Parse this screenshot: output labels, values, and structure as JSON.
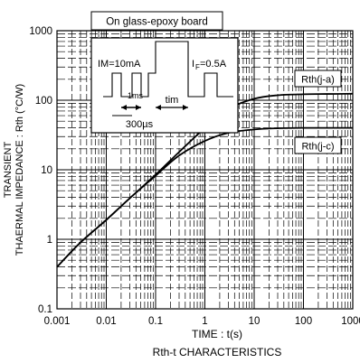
{
  "chart_data": {
    "type": "line",
    "title": "Rth-t CHARACTERISTICS",
    "xlabel": "TIME : t(s)",
    "ylabel_line1": "TRANSIENT",
    "ylabel_line2": "THAERMAL IMPEDANCE : Rth (°C/W)",
    "x_scale": "log",
    "y_scale": "log",
    "xlim": [
      0.001,
      1000
    ],
    "ylim": [
      0.1,
      1000
    ],
    "x_ticks": [
      {
        "value": 0.001,
        "label": "0.001"
      },
      {
        "value": 0.01,
        "label": "0.01"
      },
      {
        "value": 0.1,
        "label": "0.1"
      },
      {
        "value": 1,
        "label": "1"
      },
      {
        "value": 10,
        "label": "10"
      },
      {
        "value": 100,
        "label": "100"
      },
      {
        "value": 1000,
        "label": "1000"
      }
    ],
    "y_ticks": [
      {
        "value": 0.1,
        "label": "0.1"
      },
      {
        "value": 1,
        "label": "1"
      },
      {
        "value": 10,
        "label": "10"
      },
      {
        "value": 100,
        "label": "100"
      },
      {
        "value": 1000,
        "label": "1000"
      }
    ],
    "grid": true,
    "series": [
      {
        "name": "Rth(j-a)",
        "x": [
          0.001,
          0.003,
          0.01,
          0.03,
          0.1,
          0.3,
          1,
          3,
          10,
          30,
          100,
          300,
          1000
        ],
        "y": [
          0.4,
          0.9,
          1.9,
          3.9,
          8.5,
          18,
          40,
          75,
          105,
          118,
          122,
          123,
          124
        ]
      },
      {
        "name": "Rth(j-c)",
        "x": [
          0.001,
          0.003,
          0.01,
          0.03,
          0.1,
          0.3,
          1,
          3,
          10,
          30,
          100,
          300,
          1000
        ],
        "y": [
          0.4,
          0.9,
          1.9,
          3.9,
          8.2,
          16,
          26,
          34,
          38,
          39.5,
          40,
          40,
          40
        ]
      }
    ],
    "inset": {
      "board_label": "On glass-epoxy board",
      "im_label": "IM=10mA",
      "if_label_main": "I",
      "if_label_sub": "F",
      "if_label_rest": "=0.5A",
      "t1_label": "1ms",
      "tim_label": "tim",
      "period_label": "300µs"
    }
  }
}
